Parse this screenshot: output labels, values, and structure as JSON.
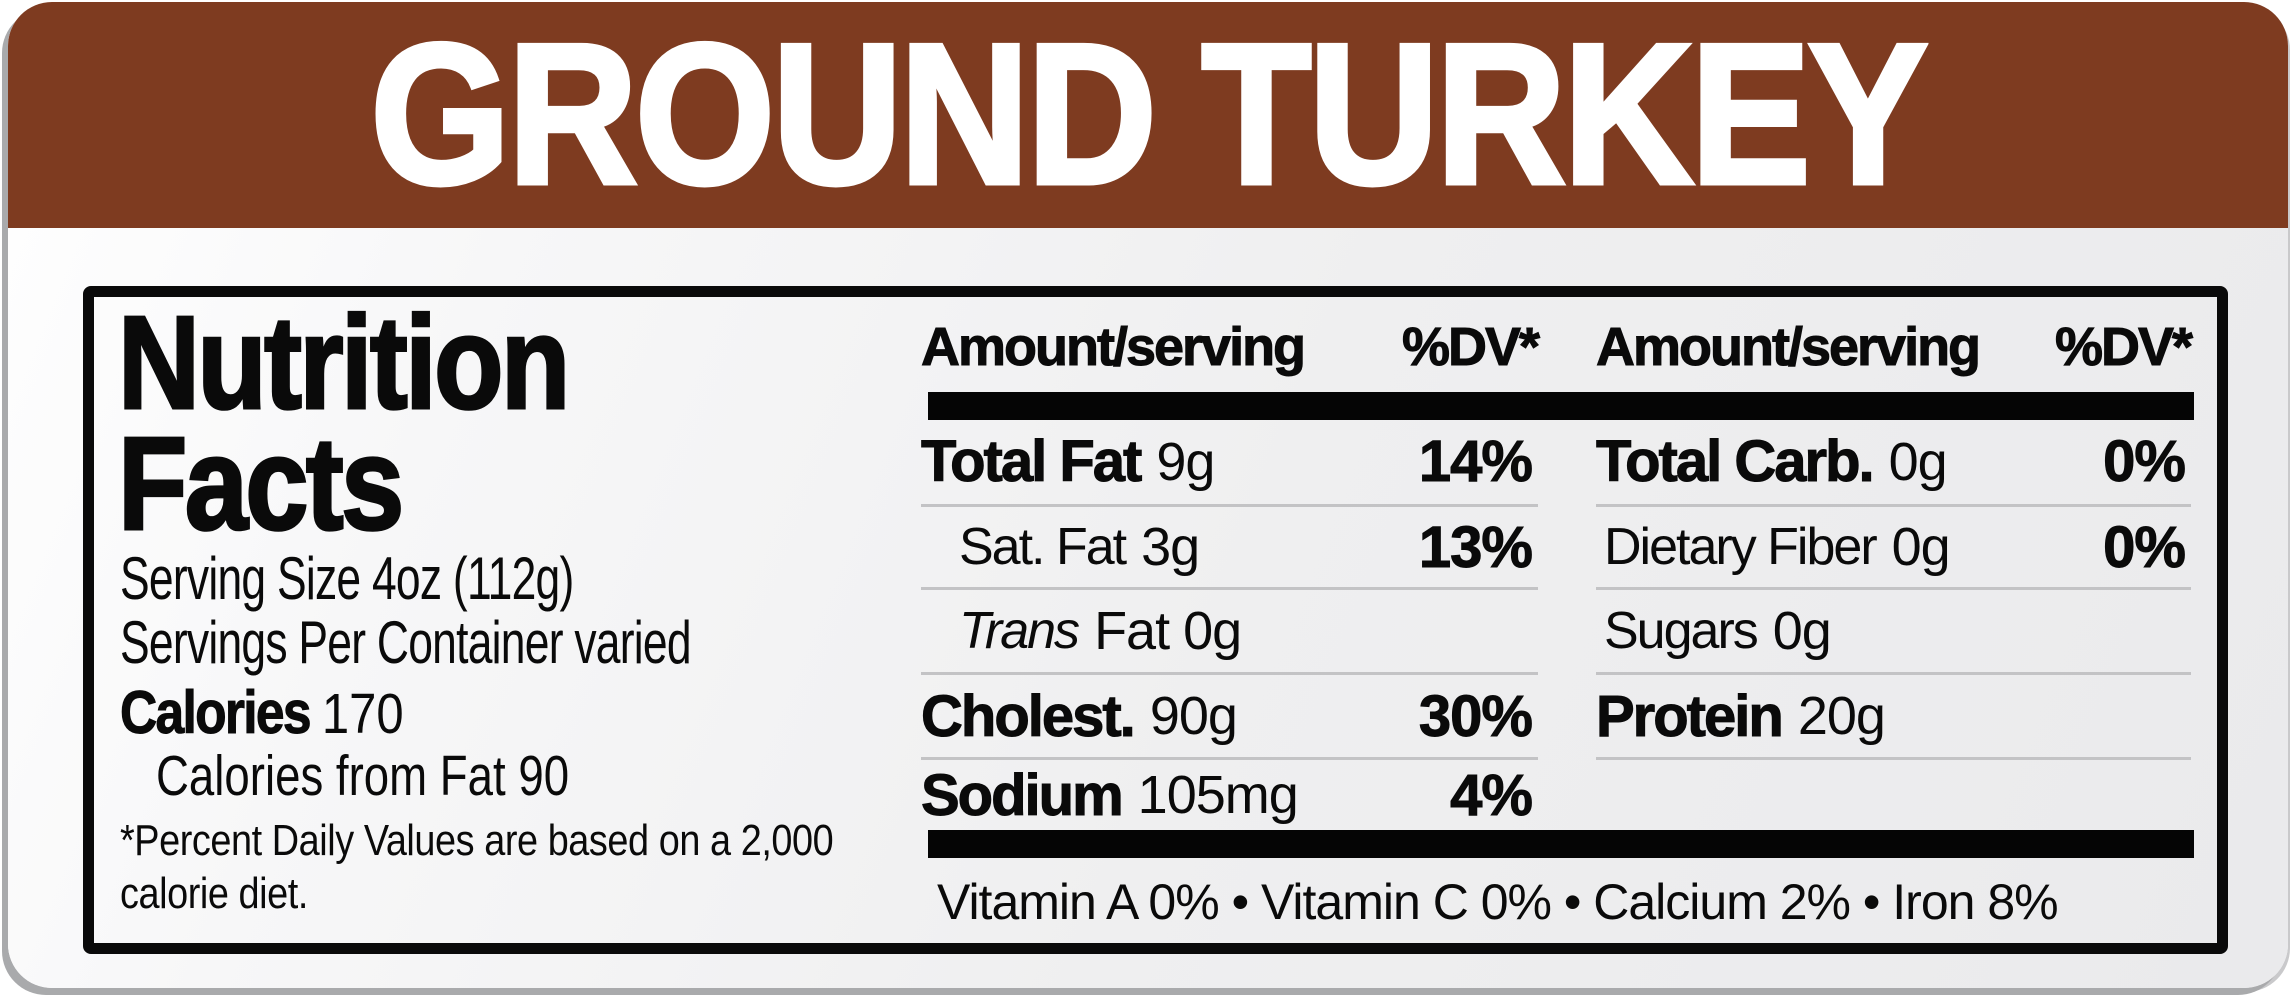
{
  "colors": {
    "header_bg": "#7E3B20",
    "header_text": "#FFFFFF",
    "panel_bg": "#EDEDEE",
    "ink": "#0A0A0A",
    "row_separator": "#C3C3C5",
    "outline_shadow": "#A9AAAC"
  },
  "header": {
    "title": "GROUND TURKEY"
  },
  "facts": {
    "title_line1": "Nutrition",
    "title_line2": "Facts",
    "serving_size": "Serving Size 4oz (112g)",
    "servings_per_container": "Servings Per Container varied",
    "calories_label": "Calories",
    "calories_value": "170",
    "calories_from_fat": "Calories from Fat 90",
    "footnote_line1": "*Percent Daily Values are based on a 2,000",
    "footnote_line2": "calorie diet."
  },
  "table": {
    "header_amount": "Amount/serving",
    "header_dv": "%DV*",
    "left_rows": [
      {
        "name": "Total Fat",
        "amount": "9g",
        "dv": "14%"
      },
      {
        "name": "Sat. Fat",
        "amount": "3g",
        "dv": "13%"
      },
      {
        "name": "Trans",
        "amount": "Fat 0g",
        "dv": ""
      },
      {
        "name": "Cholest.",
        "amount": "90g",
        "dv": "30%"
      },
      {
        "name": "Sodium",
        "amount": "105mg",
        "dv": "4%"
      }
    ],
    "right_rows": [
      {
        "name": "Total Carb.",
        "amount": "0g",
        "dv": "0%"
      },
      {
        "name": "Dietary Fiber",
        "amount": "0g",
        "dv": "0%"
      },
      {
        "name": "Sugars",
        "amount": "0g",
        "dv": ""
      },
      {
        "name": "Protein",
        "amount": "20g",
        "dv": ""
      }
    ],
    "vitamins_line": "Vitamin A 0% • Vitamin C 0% • Calcium 2% • Iron 8%"
  }
}
